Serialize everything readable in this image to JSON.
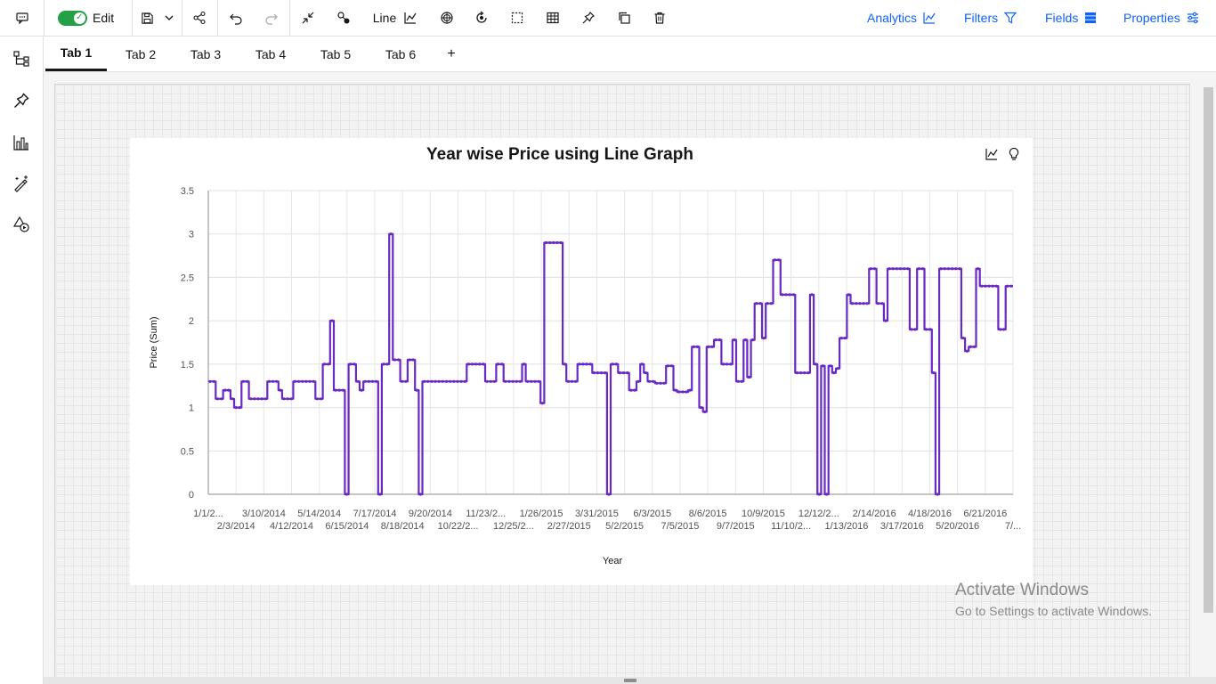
{
  "toolbar": {
    "edit_label": "Edit",
    "chart_type_label": "Line",
    "right_links": [
      {
        "label": "Analytics"
      },
      {
        "label": "Filters"
      },
      {
        "label": "Fields"
      },
      {
        "label": "Properties"
      }
    ]
  },
  "tabs": [
    {
      "label": "Tab 1",
      "active": true
    },
    {
      "label": "Tab 2"
    },
    {
      "label": "Tab 3"
    },
    {
      "label": "Tab 4"
    },
    {
      "label": "Tab 5"
    },
    {
      "label": "Tab 6"
    }
  ],
  "add_tab_label": "+",
  "watermark": {
    "line1": "Activate Windows",
    "line2": "Go to Settings to activate Windows."
  },
  "colors": {
    "accent": "#0f62fe",
    "series": "#6929c4",
    "toggle_on": "#24a148"
  },
  "icons": [
    "comment-icon",
    "toggle-icon",
    "save-icon",
    "chevron-down-icon",
    "share-icon",
    "undo-icon",
    "redo-icon",
    "collapse-icon",
    "connect-icon",
    "line-chart-icon",
    "target-icon",
    "refresh-icon",
    "select-icon",
    "table-icon",
    "pin-icon",
    "copy-icon",
    "trash-icon",
    "analytics-icon",
    "filter-icon",
    "fields-icon",
    "properties-icon",
    "hierarchy-icon",
    "bar-chart-icon",
    "magic-icon",
    "shapes-icon",
    "lightbulb-icon"
  ],
  "chart_data": {
    "type": "line",
    "title": "Year wise Price using Line Graph",
    "xlabel": "Year",
    "ylabel": "Price (Sum)",
    "ylim": [
      0,
      3.5
    ],
    "yticks": [
      "0",
      "0.5",
      "1",
      "1.5",
      "2",
      "2.5",
      "3",
      "3.5"
    ],
    "xticks_row1": [
      "1/1/2...",
      "3/10/2014",
      "5/14/2014",
      "7/17/2014",
      "9/20/2014",
      "11/23/2...",
      "1/26/2015",
      "3/31/2015",
      "6/3/2015",
      "8/6/2015",
      "10/9/2015",
      "12/12/2...",
      "2/14/2016",
      "4/18/2016",
      "6/21/2016"
    ],
    "xticks_row2": [
      "2/3/2014",
      "4/12/2014",
      "6/15/2014",
      "8/18/2014",
      "10/22/2...",
      "12/25/2...",
      "2/27/2015",
      "5/2/2015",
      "7/5/2015",
      "9/7/2015",
      "11/10/2...",
      "1/13/2016",
      "3/17/2016",
      "5/20/2016",
      "7/..."
    ],
    "grid": true,
    "series": [
      {
        "values": [
          1.3,
          1.3,
          1.1,
          1.1,
          1.2,
          1.2,
          1.1,
          1.0,
          1.0,
          1.3,
          1.3,
          1.1,
          1.1,
          1.1,
          1.1,
          1.1,
          1.3,
          1.3,
          1.3,
          1.2,
          1.1,
          1.1,
          1.1,
          1.3,
          1.3,
          1.3,
          1.3,
          1.3,
          1.3,
          1.1,
          1.1,
          1.5,
          1.5,
          2.0,
          1.2,
          1.2,
          1.2,
          0.0,
          1.5,
          1.5,
          1.3,
          1.2,
          1.3,
          1.3,
          1.3,
          1.3,
          0.0,
          1.5,
          1.5,
          3.0,
          1.55,
          1.55,
          1.3,
          1.3,
          1.55,
          1.55,
          1.2,
          0.0,
          1.3,
          1.3,
          1.3,
          1.3,
          1.3,
          1.3,
          1.3,
          1.3,
          1.3,
          1.3,
          1.3,
          1.3,
          1.5,
          1.5,
          1.5,
          1.5,
          1.5,
          1.3,
          1.3,
          1.3,
          1.5,
          1.5,
          1.3,
          1.3,
          1.3,
          1.3,
          1.3,
          1.5,
          1.3,
          1.3,
          1.3,
          1.3,
          1.05,
          2.9,
          2.9,
          2.9,
          2.9,
          2.9,
          1.5,
          1.3,
          1.3,
          1.3,
          1.5,
          1.5,
          1.5,
          1.5,
          1.4,
          1.4,
          1.4,
          1.4,
          0.0,
          1.5,
          1.5,
          1.4,
          1.4,
          1.4,
          1.2,
          1.2,
          1.3,
          1.5,
          1.4,
          1.3,
          1.3,
          1.28,
          1.28,
          1.28,
          1.48,
          1.48,
          1.2,
          1.18,
          1.18,
          1.18,
          1.2,
          1.7,
          1.7,
          1.0,
          0.95,
          1.7,
          1.7,
          1.78,
          1.78,
          1.5,
          1.5,
          1.5,
          1.78,
          1.3,
          1.3,
          1.78,
          1.35,
          1.78,
          2.2,
          2.2,
          1.8,
          2.2,
          2.2,
          2.7,
          2.7,
          2.3,
          2.3,
          2.3,
          2.3,
          1.4,
          1.4,
          1.4,
          1.4,
          2.3,
          1.5,
          0.0,
          1.48,
          0.0,
          1.48,
          1.4,
          1.45,
          1.8,
          1.8,
          2.3,
          2.2,
          2.2,
          2.2,
          2.2,
          2.2,
          2.6,
          2.6,
          2.2,
          2.2,
          2.0,
          2.6,
          2.6,
          2.6,
          2.6,
          2.6,
          2.6,
          1.9,
          1.9,
          2.6,
          2.6,
          1.9,
          1.9,
          1.4,
          0.0,
          2.6,
          2.6,
          2.6,
          2.6,
          2.6,
          2.6,
          1.8,
          1.65,
          1.7,
          1.7,
          2.6,
          2.4,
          2.4,
          2.4,
          2.4,
          2.4,
          1.9,
          1.9,
          2.4,
          2.4
        ]
      }
    ]
  }
}
